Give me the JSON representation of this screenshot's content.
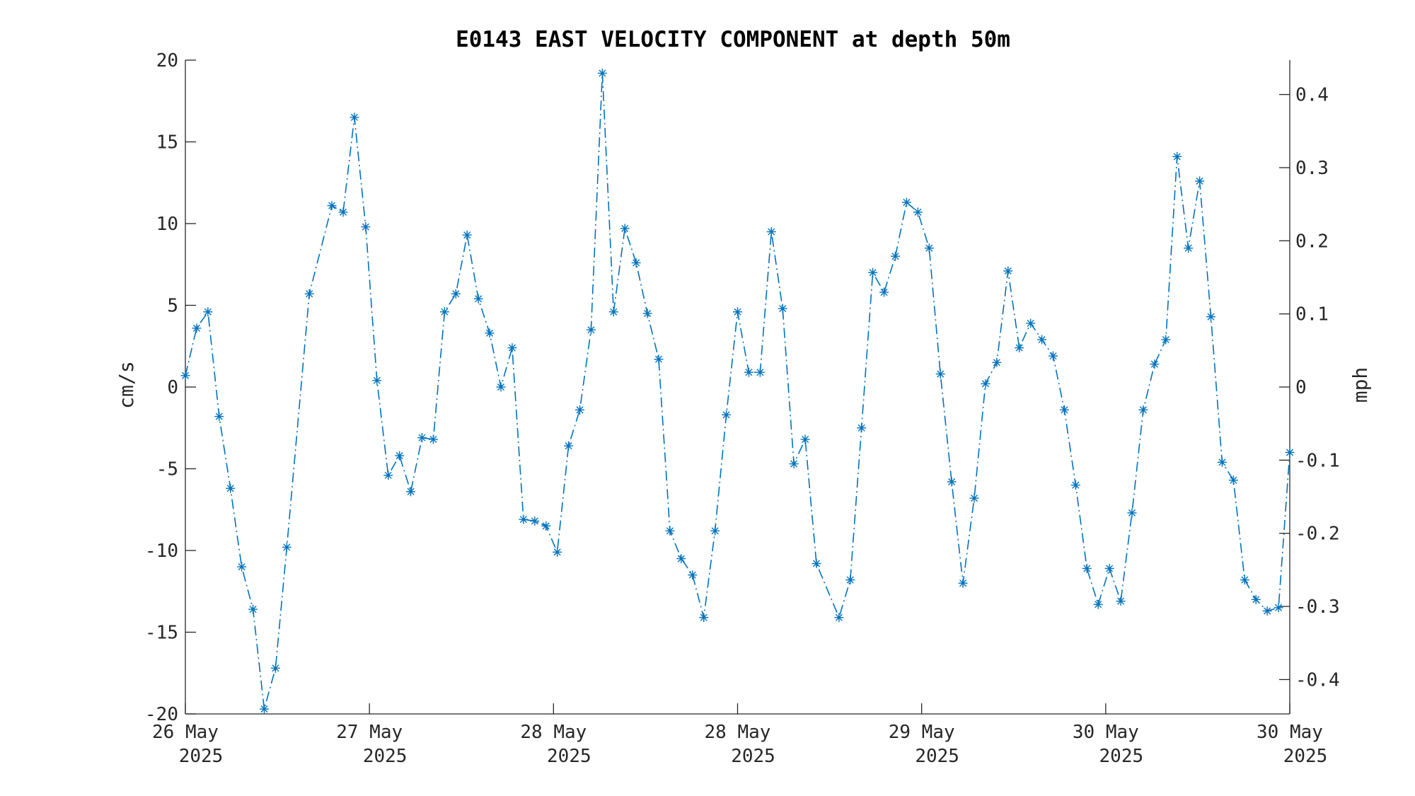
{
  "chart_data": {
    "type": "line",
    "title": "E0143 EAST VELOCITY COMPONENT at depth 50m",
    "ylabel_left": "cm/s",
    "ylabel_right": "mph",
    "ylim_left": [
      -20,
      20
    ],
    "ylim_right": [
      -0.447,
      0.447
    ],
    "yticks_left": [
      "20",
      "15",
      "10",
      "5",
      "0",
      "-5",
      "-10",
      "-15",
      "-20"
    ],
    "yticks_right": [
      "0.4",
      "0.3",
      "0.2",
      "0.1",
      "0",
      "-0.1",
      "-0.2",
      "-0.3",
      "-0.4"
    ],
    "xlim_days": [
      0,
      6
    ],
    "xticks": [
      {
        "day": "26 May",
        "year": "2025"
      },
      {
        "day": "27 May",
        "year": "2025"
      },
      {
        "day": "28 May",
        "year": "2025"
      },
      {
        "day": "28 May",
        "year": "2025"
      },
      {
        "day": "29 May",
        "year": "2025"
      },
      {
        "day": "30 May",
        "year": "2025"
      },
      {
        "day": "30 May",
        "year": "2025"
      }
    ],
    "grid": false,
    "line_style": "dash-dot",
    "marker": "asterisk",
    "series_color": "#0072BD",
    "series": [
      {
        "values": [
          0.7,
          3.6,
          4.6,
          -1.8,
          -6.2,
          -11.0,
          -13.6,
          -19.7,
          -17.2,
          -9.8,
          null,
          5.7,
          null,
          11.1,
          10.7,
          16.5,
          9.8,
          0.4,
          -5.4,
          -4.2,
          -6.4,
          -3.1,
          -3.2,
          4.6,
          5.7,
          9.3,
          5.4,
          3.3,
          0.0,
          2.4,
          -8.1,
          -8.2,
          -8.5,
          -10.1,
          -3.6,
          -1.4,
          3.5,
          19.2,
          4.6,
          9.7,
          7.6,
          4.5,
          1.7,
          -8.8,
          -10.5,
          -11.5,
          -14.1,
          -8.8,
          -1.7,
          4.6,
          0.9,
          0.9,
          9.5,
          4.8,
          -4.7,
          -3.2,
          -10.8,
          null,
          -14.1,
          -11.8,
          -2.5,
          7.0,
          5.8,
          8.0,
          11.3,
          10.7,
          8.5,
          0.8,
          -5.8,
          -12.0,
          -6.8,
          0.2,
          1.5,
          7.1,
          2.4,
          3.9,
          2.9,
          1.9,
          -1.4,
          -6.0,
          -11.1,
          -13.3,
          -11.1,
          -13.1,
          -7.7,
          -1.4,
          1.4,
          2.9,
          14.1,
          8.5,
          12.6,
          4.3,
          -4.6,
          -5.7,
          -11.8,
          -13.0,
          -13.7,
          -13.5,
          -4.0
        ]
      }
    ]
  }
}
